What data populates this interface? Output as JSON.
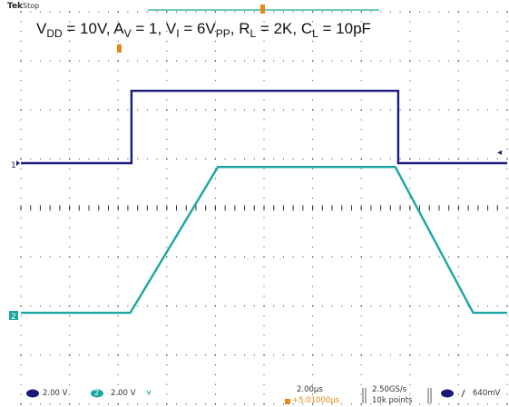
{
  "scope": {
    "brand": "Tek",
    "acq_state": "Stop",
    "colors": {
      "ch1": "#1a1a7a",
      "ch2": "#1aa7a2",
      "trigger": "#e8881c",
      "grid": "#333333"
    }
  },
  "caption": {
    "vdd_var": "V",
    "vdd_sub": "DD",
    "vdd_val": " = 10V, ",
    "av_var": "A",
    "av_sub": "V",
    "av_val": " = 1, ",
    "vi_var": "V",
    "vi_sub": "I",
    "vi_val": " = 6V",
    "vi_unit_sub": "PP",
    "vi_sep": ", ",
    "rl_var": "R",
    "rl_sub": "L",
    "rl_val": " = 2K, ",
    "cl_var": "C",
    "cl_sub": "L",
    "cl_val": " = 10pF"
  },
  "channels": {
    "ch1_marker": "1",
    "ch2_marker": "2",
    "ch1_scale": "2.00 V",
    "ch2_label": "2",
    "ch2_scale": "2.00 V",
    "bw_icon": "bandwidth-limit-icon"
  },
  "horizontal": {
    "timebase": "2.00µs",
    "trigger_position": "+5.01000µs",
    "sample_rate": "2.50GS/s",
    "record_length": "10k points"
  },
  "trigger": {
    "slope_icon": "rising-edge-icon",
    "level": "640mV"
  },
  "waveforms": {
    "ch1": [
      {
        "t": 0.0,
        "v": 0.0
      },
      {
        "t": 4.55,
        "v": 0.0
      },
      {
        "t": 4.55,
        "v": 2.95
      },
      {
        "t": 15.52,
        "v": 2.95
      },
      {
        "t": 15.52,
        "v": 0.0
      },
      {
        "t": 20.0,
        "v": 0.0
      }
    ],
    "ch2": [
      {
        "t": 0.0,
        "v": -3.0
      },
      {
        "t": 4.5,
        "v": -3.0
      },
      {
        "t": 8.1,
        "v": 2.95
      },
      {
        "t": 15.4,
        "v": 2.95
      },
      {
        "t": 18.6,
        "v": -3.0
      },
      {
        "t": 20.0,
        "v": -3.0
      }
    ]
  }
}
